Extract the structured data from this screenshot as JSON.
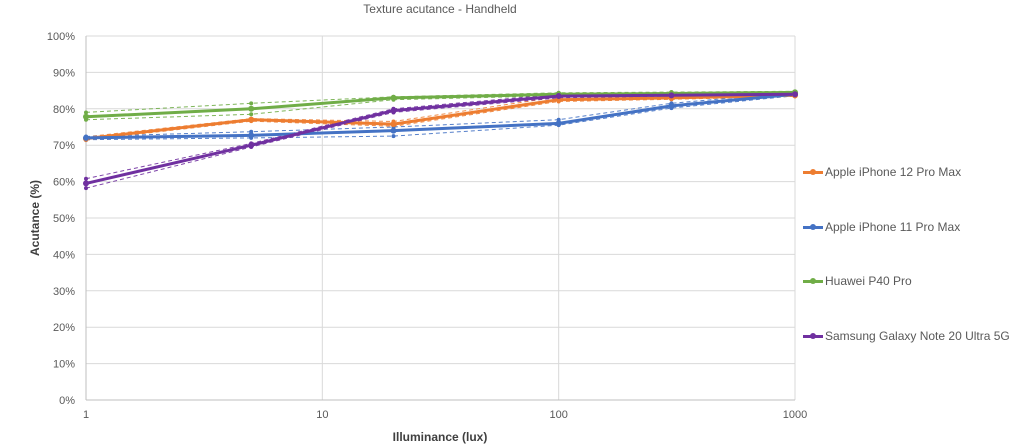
{
  "chart_data": {
    "type": "line",
    "title": "Texture acutance - Handheld",
    "xlabel": "Illuminance (lux)",
    "ylabel": "Acutance (%)",
    "x_scale": "log",
    "xlim": [
      1,
      1000
    ],
    "ylim": [
      0,
      100
    ],
    "x_ticks": [
      1,
      10,
      100,
      1000
    ],
    "x_tick_labels": [
      "1",
      "10",
      "100",
      "1000"
    ],
    "y_ticks": [
      0,
      10,
      20,
      30,
      40,
      50,
      60,
      70,
      80,
      90,
      100
    ],
    "y_tick_labels": [
      "0%",
      "10%",
      "20%",
      "30%",
      "40%",
      "50%",
      "60%",
      "70%",
      "80%",
      "90%",
      "100%"
    ],
    "grid": true,
    "legend_position": "right",
    "x": [
      1,
      5,
      20,
      100,
      300,
      1000
    ],
    "series": [
      {
        "name": "Apple iPhone 12 Pro Max",
        "color": "#ED7D31",
        "values": [
          71.8,
          77.0,
          75.8,
          82.5,
          83.0,
          83.7
        ],
        "band_upper": [
          72.3,
          77.3,
          76.5,
          83.3,
          83.5,
          84.0
        ],
        "band_lower": [
          71.4,
          76.6,
          75.2,
          82.0,
          82.6,
          83.4
        ]
      },
      {
        "name": "Apple iPhone 11 Pro Max",
        "color": "#4472C4",
        "values": [
          72.0,
          72.7,
          74.0,
          76.0,
          80.8,
          84.0
        ],
        "band_upper": [
          72.4,
          73.7,
          75.0,
          77.0,
          81.5,
          84.5
        ],
        "band_lower": [
          71.5,
          72.0,
          72.5,
          75.5,
          80.2,
          83.6
        ]
      },
      {
        "name": "Huawei P40 Pro",
        "color": "#70AD47",
        "values": [
          77.8,
          80.0,
          83.0,
          84.0,
          84.2,
          84.5
        ],
        "band_upper": [
          79.0,
          81.5,
          83.3,
          84.4,
          84.6,
          84.8
        ],
        "band_lower": [
          77.0,
          78.5,
          82.5,
          83.6,
          83.8,
          84.2
        ]
      },
      {
        "name": "Samsung Galaxy Note 20 Ultra 5G",
        "color": "#7030A0",
        "values": [
          59.5,
          70.0,
          79.5,
          83.5,
          83.7,
          84.0
        ],
        "band_upper": [
          60.8,
          70.5,
          80.0,
          84.0,
          84.1,
          84.3
        ],
        "band_lower": [
          58.2,
          69.5,
          79.0,
          83.0,
          83.3,
          83.7
        ]
      }
    ]
  },
  "colors": {
    "grid": "#D9D9D9",
    "axis": "#BFBFBF",
    "text": "#595959"
  }
}
